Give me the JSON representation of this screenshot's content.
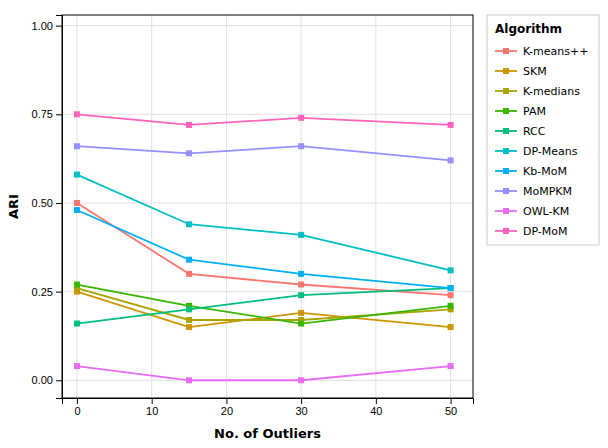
{
  "chart_data": {
    "type": "line",
    "xlabel": "No. of Outliers",
    "ylabel": "ARI",
    "legend_title": "Algorithm",
    "x": [
      0,
      15,
      30,
      50
    ],
    "series": [
      {
        "name": "K-means++",
        "color": "#F8766D",
        "marker": "square",
        "values": [
          0.5,
          0.3,
          0.27,
          0.24
        ]
      },
      {
        "name": "SKM",
        "color": "#CD9600",
        "marker": "square",
        "values": [
          0.25,
          0.15,
          0.19,
          0.15
        ]
      },
      {
        "name": "K-medians",
        "color": "#ABA300",
        "marker": "square",
        "values": [
          0.26,
          0.17,
          0.17,
          0.2
        ]
      },
      {
        "name": "PAM",
        "color": "#39B600",
        "marker": "square",
        "values": [
          0.27,
          0.21,
          0.16,
          0.21
        ]
      },
      {
        "name": "RCC",
        "color": "#00BF7D",
        "marker": "square",
        "values": [
          0.16,
          0.2,
          0.24,
          0.26
        ]
      },
      {
        "name": "DP-Means",
        "color": "#00BFC4",
        "marker": "square",
        "values": [
          0.58,
          0.44,
          0.41,
          0.31
        ]
      },
      {
        "name": "Kb-MoM",
        "color": "#00B0F6",
        "marker": "square",
        "values": [
          0.48,
          0.34,
          0.3,
          0.26
        ]
      },
      {
        "name": "MoMPKM",
        "color": "#9590FF",
        "marker": "square",
        "values": [
          0.66,
          0.64,
          0.66,
          0.62
        ]
      },
      {
        "name": "OWL-KM",
        "color": "#E76BF3",
        "marker": "square",
        "values": [
          0.04,
          0.0,
          0.0,
          0.04
        ]
      },
      {
        "name": "DP-MoM",
        "color": "#FF62BC",
        "marker": "square",
        "values": [
          0.75,
          0.72,
          0.74,
          0.72
        ]
      }
    ],
    "xlim": [
      -2,
      53
    ],
    "ylim": [
      -0.05,
      1.03
    ],
    "xticks": [
      0,
      10,
      20,
      30,
      40,
      50
    ],
    "yticks": [
      {
        "value": 0.0,
        "label": "0.00"
      },
      {
        "value": 0.25,
        "label": "0.25"
      },
      {
        "value": 0.5,
        "label": "0.50"
      },
      {
        "value": 0.75,
        "label": "0.75"
      },
      {
        "value": 1.0,
        "label": "1.00"
      }
    ],
    "grid": true,
    "legend": "right"
  }
}
